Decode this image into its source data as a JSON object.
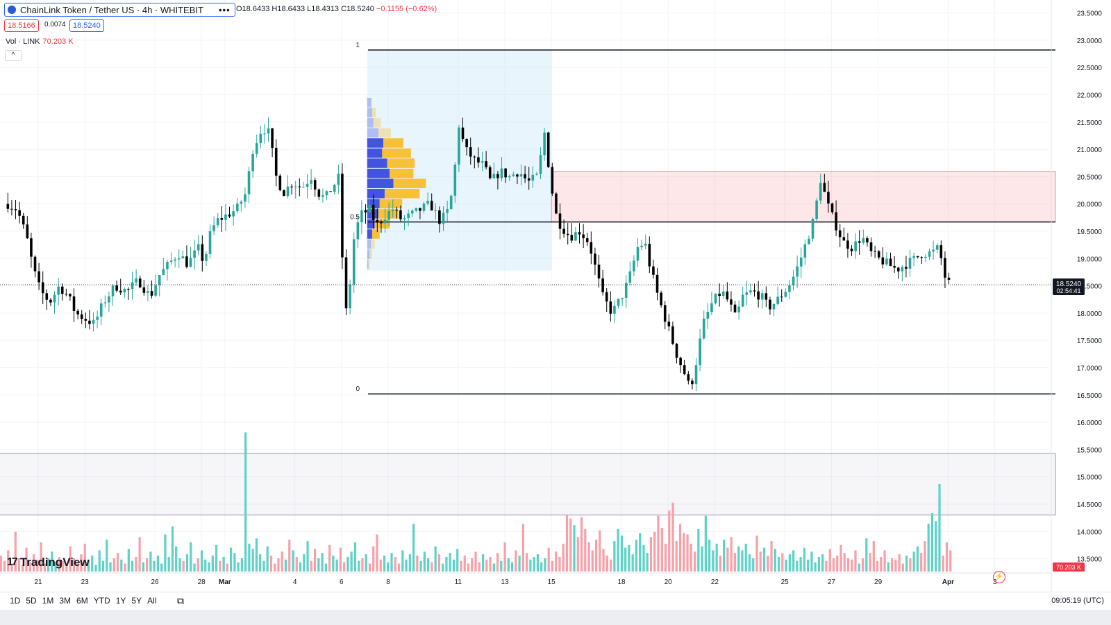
{
  "header": {
    "title": "ChainLink Token / Tether US · 4h · WHITEBIT",
    "ohlc_prefix_o": "O",
    "open": "18.6433",
    "high": "H18.6433",
    "low": "L18.4313",
    "close": "C18.5240",
    "change": "−0.1155 (−0.62%)",
    "more_label": "•••"
  },
  "quote": {
    "bid": "18.5166",
    "spread": "0.0074",
    "ask": "18.5240"
  },
  "volume": {
    "label": "Vol · LINK",
    "value": "70.203 K"
  },
  "collapse_label": "^",
  "brand": {
    "logo_glyph": "17",
    "name": "TradingView"
  },
  "range_buttons": [
    "1D",
    "5D",
    "1M",
    "3M",
    "6M",
    "YTD",
    "1Y",
    "5Y",
    "All"
  ],
  "calendar_glyph": "⧉",
  "clock": "09:05:19 (UTC)",
  "colors": {
    "up": "#26a69a",
    "down": "#000000",
    "vol_up": "#5fd1c6",
    "vol_down": "#f7a0a8",
    "zone_red": "#f23645",
    "zone_gray": "#7b7f95",
    "range_box": "#bfe3f7",
    "profile_a": "#4355e0",
    "profile_b": "#f6c037",
    "price_tag": "#131722",
    "vol_tag": "#f23645"
  },
  "chart_data": {
    "type": "candlestick",
    "title": "ChainLink Token / Tether US · 4h · WHITEBIT",
    "ylim": [
      13.3,
      23.7
    ],
    "y_ticks": [
      "23.5000",
      "23.0000",
      "22.5000",
      "22.0000",
      "21.5000",
      "21.0000",
      "20.5000",
      "20.0000",
      "19.5000",
      "19.0000",
      "18.5000",
      "18.0000",
      "17.5000",
      "17.0000",
      "16.5000",
      "16.0000",
      "15.5000",
      "15.0000",
      "14.5000",
      "14.0000",
      "13.5000"
    ],
    "x_ticks": [
      {
        "label": "21",
        "day": 0
      },
      {
        "label": "23",
        "day": 2
      },
      {
        "label": "26",
        "day": 5
      },
      {
        "label": "28",
        "day": 7
      },
      {
        "label": "Mar",
        "day": 8
      },
      {
        "label": "4",
        "day": 11
      },
      {
        "label": "6",
        "day": 13
      },
      {
        "label": "8",
        "day": 15
      },
      {
        "label": "11",
        "day": 18
      },
      {
        "label": "13",
        "day": 20
      },
      {
        "label": "15",
        "day": 22
      },
      {
        "label": "18",
        "day": 25
      },
      {
        "label": "20",
        "day": 27
      },
      {
        "label": "22",
        "day": 29
      },
      {
        "label": "25",
        "day": 32
      },
      {
        "label": "27",
        "day": 34
      },
      {
        "label": "29",
        "day": 36
      },
      {
        "label": "Apr",
        "day": 39
      },
      {
        "label": "3",
        "day": 41
      }
    ],
    "close_path": [
      [
        -1.3,
        20.0
      ],
      [
        -0.9,
        19.9
      ],
      [
        -0.5,
        19.4
      ],
      [
        -0.2,
        18.8
      ],
      [
        0.1,
        18.4
      ],
      [
        0.5,
        18.2
      ],
      [
        0.9,
        18.5
      ],
      [
        1.3,
        18.3
      ],
      [
        1.6,
        18.0
      ],
      [
        2.0,
        17.9
      ],
      [
        2.4,
        17.8
      ],
      [
        2.8,
        18.2
      ],
      [
        3.3,
        18.5
      ],
      [
        3.8,
        18.4
      ],
      [
        4.3,
        18.6
      ],
      [
        4.8,
        18.3
      ],
      [
        5.2,
        18.7
      ],
      [
        5.6,
        18.9
      ],
      [
        6.0,
        19.1
      ],
      [
        6.4,
        18.9
      ],
      [
        6.9,
        19.2
      ],
      [
        7.1,
        18.9
      ],
      [
        7.4,
        19.5
      ],
      [
        7.7,
        19.7
      ],
      [
        8.1,
        19.8
      ],
      [
        8.5,
        19.9
      ],
      [
        8.9,
        20.2
      ],
      [
        9.2,
        21.0
      ],
      [
        9.6,
        21.4
      ],
      [
        9.9,
        21.3
      ],
      [
        10.2,
        20.5
      ],
      [
        10.5,
        20.2
      ],
      [
        10.9,
        20.4
      ],
      [
        11.3,
        20.3
      ],
      [
        11.7,
        20.5
      ],
      [
        12.0,
        20.2
      ],
      [
        12.3,
        20.1
      ],
      [
        12.6,
        20.3
      ],
      [
        12.9,
        20.5
      ],
      [
        13.1,
        18.3
      ],
      [
        13.25,
        17.9
      ],
      [
        13.5,
        19.3
      ],
      [
        13.8,
        19.8
      ],
      [
        14.2,
        19.9
      ],
      [
        14.5,
        19.6
      ],
      [
        14.9,
        19.8
      ],
      [
        15.2,
        19.9
      ],
      [
        15.6,
        19.7
      ],
      [
        16.0,
        19.8
      ],
      [
        16.4,
        19.9
      ],
      [
        16.8,
        20.0
      ],
      [
        17.2,
        19.7
      ],
      [
        17.5,
        19.8
      ],
      [
        17.8,
        20.3
      ],
      [
        18.0,
        21.5
      ],
      [
        18.3,
        21.0
      ],
      [
        18.7,
        20.8
      ],
      [
        19.1,
        20.7
      ],
      [
        19.4,
        20.4
      ],
      [
        19.8,
        20.6
      ],
      [
        20.2,
        20.5
      ],
      [
        20.6,
        20.6
      ],
      [
        21.0,
        20.4
      ],
      [
        21.4,
        20.5
      ],
      [
        21.7,
        21.3
      ],
      [
        22.0,
        20.3
      ],
      [
        22.2,
        19.8
      ],
      [
        22.4,
        19.6
      ],
      [
        22.8,
        19.4
      ],
      [
        23.2,
        19.5
      ],
      [
        23.6,
        19.3
      ],
      [
        23.9,
        18.8
      ],
      [
        24.2,
        18.3
      ],
      [
        24.6,
        18.0
      ],
      [
        25.0,
        18.3
      ],
      [
        25.3,
        18.6
      ],
      [
        25.7,
        19.2
      ],
      [
        26.0,
        19.3
      ],
      [
        26.2,
        18.9
      ],
      [
        26.5,
        18.4
      ],
      [
        26.8,
        18.0
      ],
      [
        27.1,
        17.6
      ],
      [
        27.4,
        17.2
      ],
      [
        27.7,
        16.9
      ],
      [
        27.95,
        16.6
      ],
      [
        28.2,
        17.1
      ],
      [
        28.5,
        17.8
      ],
      [
        28.9,
        18.2
      ],
      [
        29.3,
        18.4
      ],
      [
        29.6,
        18.2
      ],
      [
        29.9,
        17.9
      ],
      [
        30.2,
        18.3
      ],
      [
        30.6,
        18.4
      ],
      [
        31.0,
        18.3
      ],
      [
        31.3,
        18.1
      ],
      [
        31.6,
        18.2
      ],
      [
        32.0,
        18.4
      ],
      [
        32.3,
        18.6
      ],
      [
        32.6,
        18.9
      ],
      [
        33.0,
        19.4
      ],
      [
        33.3,
        19.8
      ],
      [
        33.5,
        20.5
      ],
      [
        33.7,
        20.2
      ],
      [
        33.9,
        19.9
      ],
      [
        34.2,
        19.6
      ],
      [
        34.5,
        19.3
      ],
      [
        34.9,
        19.2
      ],
      [
        35.3,
        19.4
      ],
      [
        35.7,
        19.1
      ],
      [
        36.0,
        19.0
      ],
      [
        36.4,
        18.9
      ],
      [
        36.8,
        18.8
      ],
      [
        37.2,
        18.9
      ],
      [
        37.6,
        19.0
      ],
      [
        37.9,
        19.1
      ],
      [
        38.3,
        19.1
      ],
      [
        38.6,
        19.2
      ],
      [
        38.9,
        18.6
      ],
      [
        39.1,
        18.52
      ]
    ],
    "volume_ylim": [
      0,
      11.0
    ],
    "volumes": [
      1.2,
      0.8,
      1.6,
      0.6,
      3.0,
      1.0,
      0.5,
      1.8,
      0.7,
      1.3,
      0.9,
      2.2,
      0.6,
      1.0,
      1.5,
      0.7,
      1.1,
      0.8,
      0.6,
      1.9,
      1.0,
      0.7,
      1.3,
      2.1,
      0.9,
      1.2,
      0.5,
      1.6,
      0.8,
      2.4,
      0.7,
      1.0,
      1.4,
      0.9,
      0.6,
      1.7,
      0.8,
      1.1,
      2.6,
      0.7,
      1.0,
      1.5,
      0.8,
      1.2,
      0.6,
      2.8,
      1.1,
      3.4,
      1.9,
      1.0,
      0.8,
      1.3,
      2.2,
      0.6,
      1.0,
      1.6,
      0.9,
      0.7,
      1.2,
      2.0,
      0.8,
      1.1,
      0.6,
      1.8,
      1.4,
      0.7,
      1.0,
      10.5,
      2.1,
      1.7,
      2.5,
      1.3,
      0.8,
      1.9,
      1.2,
      0.6,
      1.0,
      1.5,
      0.9,
      2.4,
      1.6,
      1.1,
      0.7,
      1.3,
      2.3,
      0.8,
      1.7,
      1.0,
      1.4,
      0.6,
      2.0,
      1.2,
      0.9,
      1.8,
      0.7,
      1.1,
      1.5,
      2.2,
      0.8,
      1.0,
      1.3,
      0.6,
      1.9,
      2.8,
      0.9,
      1.2,
      0.7,
      1.4,
      1.1,
      0.6,
      1.6,
      0.9,
      1.3,
      3.6,
      1.2,
      0.8,
      1.5,
      1.0,
      0.7,
      1.9,
      1.3,
      0.6,
      1.1,
      1.4,
      0.9,
      1.7,
      0.8,
      1.2,
      0.6,
      1.0,
      1.5,
      0.7,
      1.3,
      0.9,
      1.1,
      0.6,
      1.4,
      0.8,
      2.2,
      1.0,
      0.7,
      1.6,
      1.2,
      3.6,
      1.4,
      0.9,
      1.1,
      1.3,
      0.7,
      1.0,
      1.8,
      0.8,
      1.5,
      1.1,
      2.1,
      4.3,
      4.0,
      3.5,
      2.6,
      4.1,
      3.2,
      2.2,
      1.6,
      2.4,
      3.1,
      1.7,
      1.2,
      0.9,
      2.3,
      3.2,
      2.7,
      1.8,
      2.0,
      1.3,
      2.4,
      2.9,
      2.0,
      1.4,
      2.6,
      3.0,
      4.2,
      3.3,
      2.1,
      4.6,
      5.2,
      2.3,
      3.6,
      2.9,
      2.8,
      2.1,
      1.5,
      3.2,
      1.9,
      4.2,
      2.4,
      1.6,
      2.1,
      1.2,
      2.4,
      1.8,
      2.6,
      1.4,
      1.9,
      1.6,
      2.1,
      1.3,
      1.0,
      2.7,
      1.5,
      1.8,
      1.2,
      2.3,
      1.7,
      1.1,
      1.4,
      0.9,
      1.3,
      1.6,
      0.8,
      1.1,
      1.8,
      0.9,
      1.5,
      0.7,
      1.1,
      1.3,
      0.8,
      1.7,
      1.0,
      1.2,
      2.0,
      1.4,
      1.0,
      0.9,
      1.6,
      0.6,
      1.0,
      2.5,
      1.4,
      2.3,
      0.8,
      1.1,
      1.6,
      0.7,
      1.0,
      0.9,
      1.3,
      0.6,
      1.2,
      1.0,
      1.5,
      1.9,
      1.4,
      2.3,
      3.6,
      4.4,
      3.8,
      6.6,
      1.2,
      2.2,
      1.6
    ],
    "fib": [
      {
        "label": "1",
        "price": 22.82
      },
      {
        "label": "0.5",
        "price": 19.67
      },
      {
        "label": "0",
        "price": 16.52
      }
    ],
    "zones": [
      {
        "name": "resistance",
        "from_day": 22.0,
        "to_day": 43.6,
        "low": 19.67,
        "high": 20.6,
        "color": "#f23645"
      },
      {
        "name": "volume-zone",
        "from_day": -1.8,
        "to_day": 43.6,
        "low": 14.3,
        "high": 15.43,
        "color": "#7b7f95"
      }
    ],
    "range_box": {
      "from_day": 14.1,
      "to_day": 22.0,
      "low": 18.78,
      "high": 22.82
    },
    "profile": {
      "price_low": 18.8,
      "price_high": 21.95,
      "start_day": 14.1,
      "rows": [
        {
          "a": 0.3,
          "b": 0.1
        },
        {
          "a": 0.4,
          "b": 0.3
        },
        {
          "a": 0.5,
          "b": 0.6
        },
        {
          "a": 0.9,
          "b": 1.0
        },
        {
          "a": 1.3,
          "b": 1.6
        },
        {
          "a": 1.2,
          "b": 2.3
        },
        {
          "a": 1.6,
          "b": 2.2
        },
        {
          "a": 1.8,
          "b": 1.9
        },
        {
          "a": 2.1,
          "b": 2.6
        },
        {
          "a": 1.4,
          "b": 2.8
        },
        {
          "a": 1.0,
          "b": 1.8
        },
        {
          "a": 0.9,
          "b": 1.6
        },
        {
          "a": 0.6,
          "b": 1.2
        },
        {
          "a": 0.4,
          "b": 0.6
        },
        {
          "a": 0.3,
          "b": 0.3
        },
        {
          "a": 0.2,
          "b": 0.2
        },
        {
          "a": 0.1,
          "b": 0.1
        }
      ]
    },
    "last_price": "18.5240",
    "countdown": "02:54:41",
    "last_volume": "70.203 K",
    "current_line_price": 18.52
  }
}
